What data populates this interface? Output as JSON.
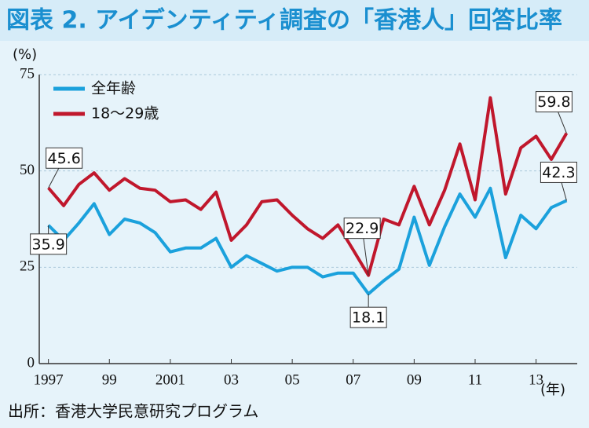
{
  "chart_data": {
    "type": "line",
    "title": "図表 2. アイデンティティ調査の「香港人」回答比率",
    "y_unit": "(%)",
    "x_unit": "(年)",
    "source": "出所：香港大学民意研究プログラム",
    "x": [
      1997,
      1997.5,
      1998,
      1998.5,
      1999,
      1999.5,
      2000,
      2000.5,
      2001,
      2001.5,
      2002,
      2002.5,
      2003,
      2003.5,
      2004,
      2004.5,
      2005,
      2005.5,
      2006,
      2006.5,
      2007,
      2007.5,
      2008,
      2008.5,
      2009,
      2009.5,
      2010,
      2010.5,
      2011,
      2011.5,
      2012,
      2012.5,
      2013,
      2013.5,
      2014
    ],
    "series": [
      {
        "name": "全年齢",
        "color": "#1ba1dc",
        "values": [
          35.9,
          32,
          36.5,
          41.5,
          33.5,
          37.5,
          36.5,
          34,
          29,
          30,
          30,
          32.5,
          25,
          28,
          26,
          24,
          25,
          25,
          22.5,
          23.5,
          23.5,
          18.1,
          21.5,
          24.5,
          38,
          25.5,
          35.5,
          44,
          38,
          45.5,
          27.5,
          38.5,
          35,
          40.5,
          42.3
        ],
        "value_labels": [
          "35.9",
          null,
          null,
          null,
          null,
          null,
          null,
          null,
          null,
          null,
          null,
          null,
          null,
          null,
          null,
          null,
          null,
          null,
          null,
          null,
          null,
          "18.1",
          null,
          null,
          null,
          null,
          null,
          null,
          null,
          null,
          null,
          null,
          null,
          null,
          "42.3"
        ]
      },
      {
        "name": "18～29歳",
        "color": "#c0172c",
        "values": [
          45.6,
          41,
          46.5,
          49.5,
          45,
          48,
          45.5,
          45,
          42,
          42.5,
          40,
          44.5,
          32,
          36,
          42,
          42.5,
          38.5,
          35,
          32.5,
          36,
          29.5,
          22.9,
          37.5,
          36,
          46,
          36,
          45,
          57,
          42.5,
          69,
          44,
          56,
          59,
          53,
          59.8
        ],
        "value_labels": [
          "45.6",
          null,
          null,
          null,
          null,
          null,
          null,
          null,
          null,
          null,
          null,
          null,
          null,
          null,
          null,
          null,
          null,
          null,
          null,
          null,
          null,
          "22.9",
          null,
          null,
          null,
          null,
          null,
          null,
          null,
          null,
          null,
          null,
          null,
          null,
          "59.8"
        ]
      }
    ],
    "xlim": [
      1996.7,
      2014.35
    ],
    "ylim": [
      0,
      75
    ],
    "xticks": [
      1997,
      {
        "value": 1999,
        "label": "99"
      },
      2001,
      {
        "value": 2003,
        "label": "03"
      },
      {
        "value": 2005,
        "label": "05"
      },
      {
        "value": 2007,
        "label": "07"
      },
      {
        "value": 2009,
        "label": "09"
      },
      {
        "value": 2011,
        "label": "11"
      },
      {
        "value": 2013,
        "label": "13"
      }
    ],
    "yticks": [
      0,
      25,
      50,
      75
    ],
    "grid": true,
    "legend": "upper left"
  }
}
